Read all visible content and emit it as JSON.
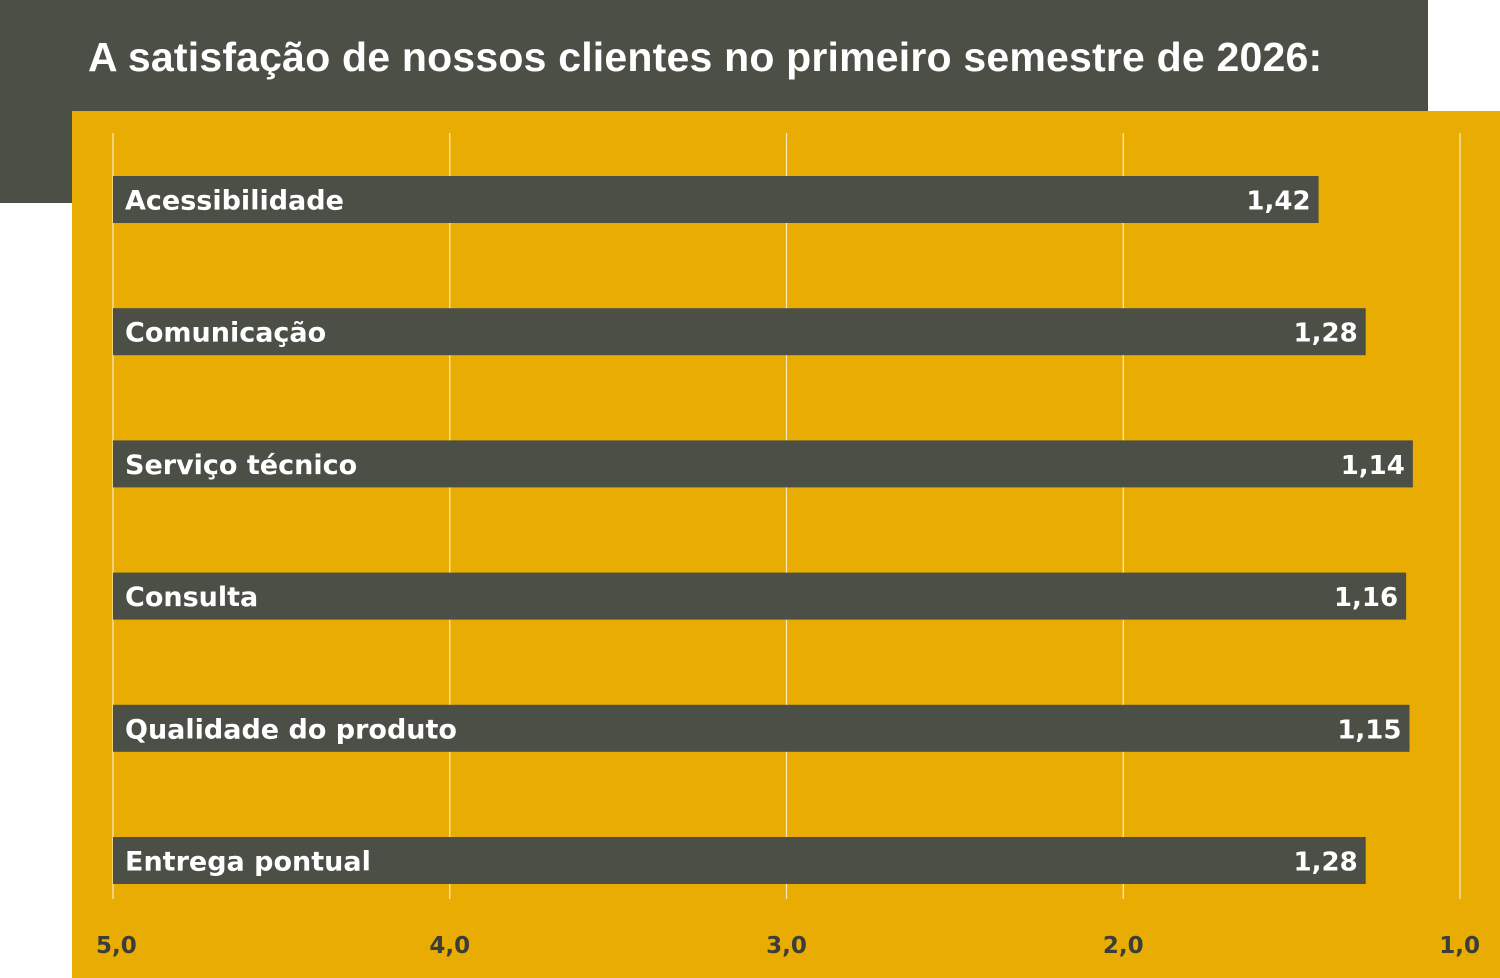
{
  "title": "A satisfação de nossos clientes no primeiro semestre de 2026:",
  "colors": {
    "title_band": "#4b4f46",
    "panel": "#e8ac03",
    "bar": "#4b4f46",
    "bar_text": "#ffffff",
    "gridline": "#f6e6b8",
    "tick_text": "#3b3d36"
  },
  "chart_data": {
    "type": "bar",
    "orientation": "horizontal",
    "x_axis_reversed": true,
    "xlim": [
      5.0,
      1.0
    ],
    "ticks": [
      5.0,
      4.0,
      3.0,
      2.0,
      1.0
    ],
    "tick_labels": [
      "5,0",
      "4,0",
      "3,0",
      "2,0",
      "1,0"
    ],
    "grid": true,
    "categories": [
      "Acessibilidade",
      "Comunicação",
      "Serviço técnico",
      "Consulta",
      "Qualidade do produto",
      "Entrega pontual"
    ],
    "values": [
      1.42,
      1.28,
      1.14,
      1.16,
      1.15,
      1.28
    ],
    "value_labels": [
      "1,42",
      "1,28",
      "1,14",
      "1,16",
      "1,15",
      "1,28"
    ]
  }
}
